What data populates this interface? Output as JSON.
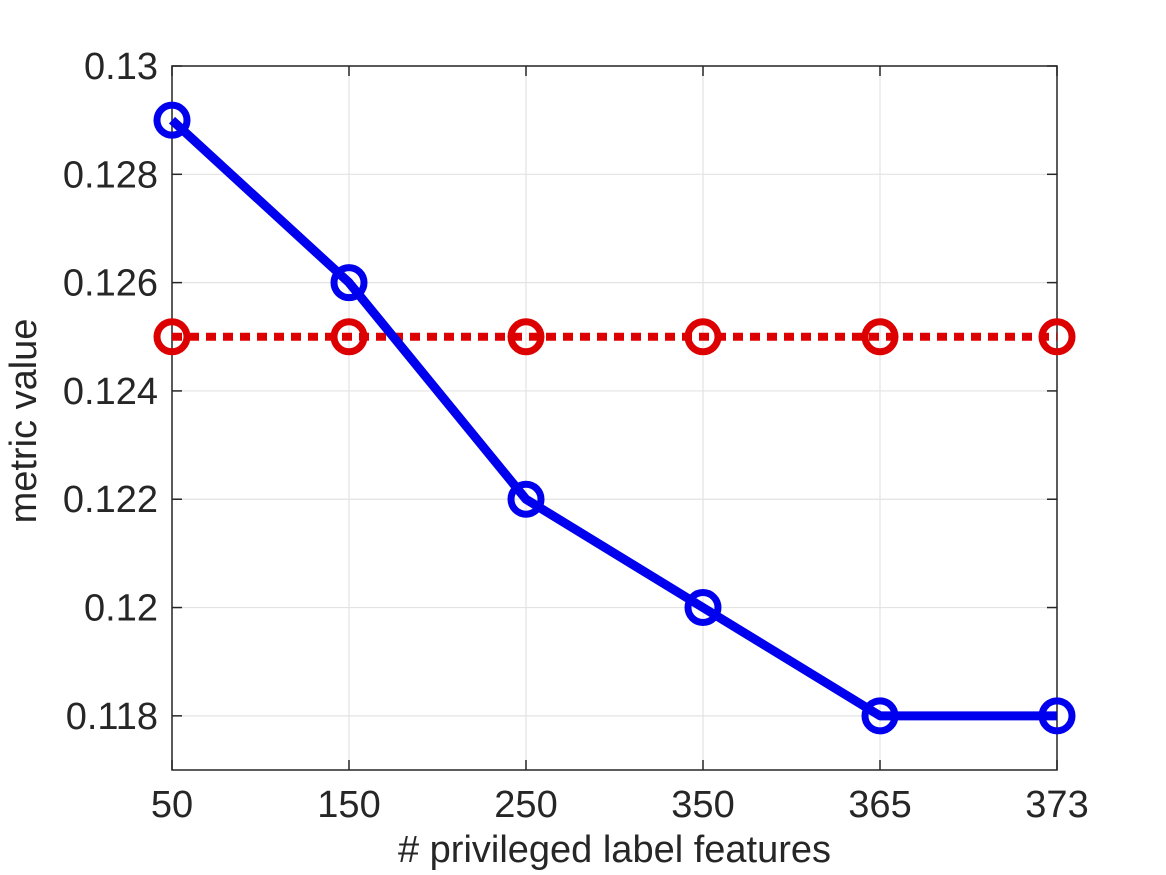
{
  "chart_data": {
    "type": "line",
    "title": "",
    "xlabel": "# privileged label features",
    "ylabel": "metric value",
    "categories": [
      "50",
      "150",
      "250",
      "350",
      "365",
      "373"
    ],
    "ylim": [
      0.117,
      0.13
    ],
    "yticks": [
      0.118,
      0.12,
      0.122,
      0.124,
      0.126,
      0.128,
      0.13
    ],
    "ytick_labels": [
      "0.118",
      "0.12",
      "0.122",
      "0.124",
      "0.126",
      "0.128",
      "0.13"
    ],
    "grid": true,
    "legend": "none",
    "series": [
      {
        "values": [
          0.129,
          0.126,
          0.122,
          0.12,
          0.118,
          0.118
        ],
        "color": "#0000ee",
        "line_style": "solid",
        "marker": "circle-open"
      },
      {
        "values": [
          0.125,
          0.125,
          0.125,
          0.125,
          0.125,
          0.125
        ],
        "color": "#dd0000",
        "line_style": "dotted",
        "marker": "circle-open"
      }
    ]
  }
}
